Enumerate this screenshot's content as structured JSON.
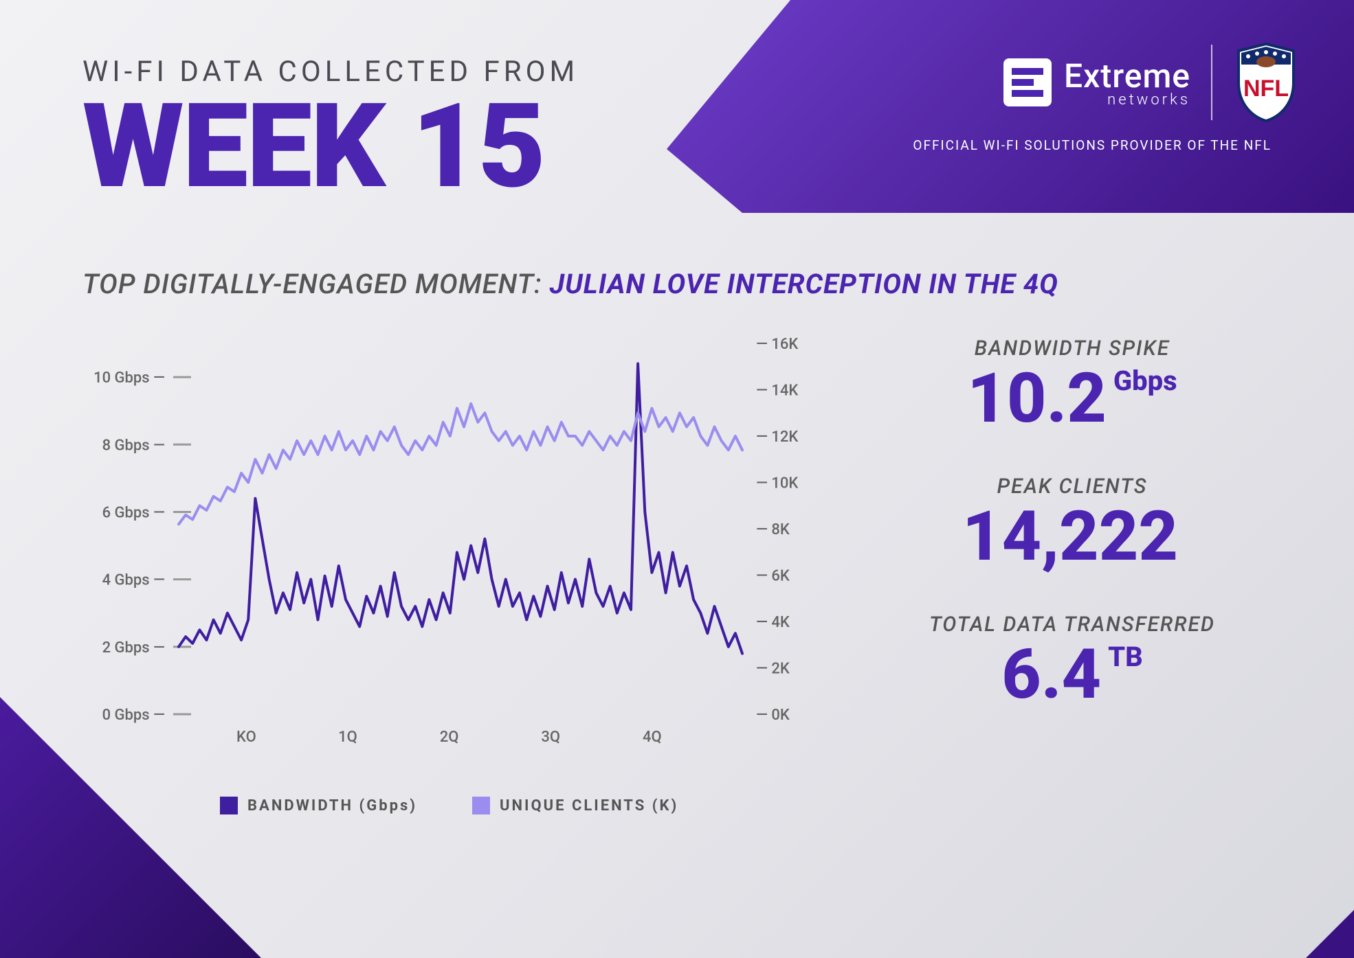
{
  "header": {
    "subtitle": "WI-FI DATA COLLECTED FROM",
    "title": "WEEK 15",
    "brand_main": "Extreme",
    "brand_sub": "networks",
    "tagline": "OFFICIAL WI-FI SOLUTIONS PROVIDER OF THE NFL",
    "brand_color_grad_start": "#6d3dc9",
    "brand_color_grad_end": "#3a1180"
  },
  "moment": {
    "label": "TOP DIGITALLY-ENGAGED MOMENT: ",
    "value": "JULIAN LOVE INTERCEPTION IN THE 4Q"
  },
  "chart": {
    "type": "line-dual-axis",
    "background_color": "transparent",
    "x_labels": [
      "KO",
      "1Q",
      "2Q",
      "3Q",
      "4Q"
    ],
    "left_axis": {
      "label_suffix": " Gbps",
      "ticks": [
        0,
        2,
        4,
        6,
        8,
        10
      ],
      "min": 0,
      "max": 11
    },
    "right_axis": {
      "label_suffix": "K",
      "ticks": [
        0,
        2,
        4,
        6,
        8,
        10,
        12,
        14,
        16
      ],
      "min": 0,
      "max": 16
    },
    "series": [
      {
        "name": "BANDWIDTH (Gbps)",
        "axis": "left",
        "color": "#3f1ea0",
        "line_width": 4,
        "values": [
          2.0,
          2.3,
          2.1,
          2.5,
          2.2,
          2.8,
          2.4,
          3.0,
          2.6,
          2.2,
          2.8,
          6.4,
          5.2,
          4.0,
          3.0,
          3.6,
          3.1,
          4.2,
          3.3,
          4.0,
          2.8,
          4.1,
          3.2,
          4.4,
          3.4,
          3.0,
          2.6,
          3.5,
          3.0,
          3.8,
          2.9,
          4.2,
          3.2,
          2.8,
          3.2,
          2.6,
          3.4,
          2.8,
          3.6,
          3.0,
          4.8,
          4.0,
          5.0,
          4.2,
          5.2,
          4.0,
          3.2,
          4.0,
          3.2,
          3.6,
          2.8,
          3.5,
          2.9,
          3.8,
          3.1,
          4.2,
          3.3,
          4.0,
          3.2,
          4.6,
          3.6,
          3.2,
          3.8,
          3.0,
          3.6,
          3.1,
          10.4,
          6.0,
          4.2,
          4.8,
          3.6,
          4.8,
          3.8,
          4.4,
          3.4,
          3.0,
          2.4,
          3.2,
          2.6,
          2.0,
          2.4,
          1.8
        ]
      },
      {
        "name": "UNIQUE CLIENTS (K)",
        "axis": "right",
        "color": "#9a8def",
        "line_width": 4,
        "values": [
          8.2,
          8.6,
          8.4,
          9.0,
          8.8,
          9.4,
          9.2,
          9.8,
          9.6,
          10.4,
          10.0,
          11.0,
          10.4,
          11.2,
          10.6,
          11.4,
          11.0,
          11.8,
          11.2,
          11.8,
          11.2,
          12.0,
          11.4,
          12.2,
          11.4,
          11.8,
          11.2,
          12.0,
          11.4,
          12.2,
          11.8,
          12.4,
          11.6,
          11.2,
          11.8,
          11.4,
          12.0,
          11.6,
          12.6,
          12.0,
          13.2,
          12.4,
          13.4,
          12.6,
          13.0,
          12.2,
          11.8,
          12.2,
          11.6,
          12.0,
          11.4,
          12.2,
          11.6,
          12.4,
          11.8,
          12.6,
          12.0,
          12.0,
          11.6,
          12.2,
          11.8,
          11.4,
          12.0,
          11.6,
          12.2,
          11.8,
          13.0,
          12.2,
          13.2,
          12.4,
          12.8,
          12.2,
          13.0,
          12.4,
          12.8,
          12.0,
          11.6,
          12.4,
          11.8,
          11.4,
          12.0,
          11.4
        ]
      }
    ],
    "legend": [
      {
        "label": "BANDWIDTH (Gbps)",
        "color": "#3f1ea0"
      },
      {
        "label": "UNIQUE CLIENTS (K)",
        "color": "#9a8def"
      }
    ],
    "axis_text_color": "#666666",
    "tick_color": "#999999"
  },
  "stats": [
    {
      "label": "BANDWIDTH SPIKE",
      "value": "10.2",
      "unit": "Gbps"
    },
    {
      "label": "PEAK CLIENTS",
      "value": "14,222",
      "unit": ""
    },
    {
      "label": "TOTAL DATA TRANSFERRED",
      "value": "6.4",
      "unit": "TB"
    }
  ],
  "colors": {
    "primary": "#4b24b0",
    "text_muted": "#555555"
  }
}
